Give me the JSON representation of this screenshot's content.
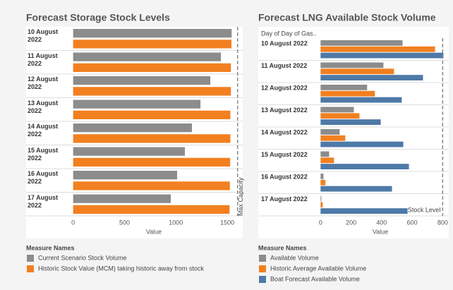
{
  "chart_data": [
    {
      "type": "bar",
      "orientation": "horizontal",
      "title": "Forecast Storage Stock Levels",
      "categories": [
        "10 August 2022",
        "11 August 2022",
        "12 August 2022",
        "13 August 2022",
        "14 August 2022",
        "15 August 2022",
        "16 August 2022",
        "17 August 2022"
      ],
      "series": [
        {
          "name": "Current Scenario Stock Volume",
          "color": "#8c8c8c",
          "values": [
            1542,
            1438,
            1335,
            1239,
            1156,
            1087,
            1012,
            950
          ]
        },
        {
          "name": "Historic Stock Value (MCM) taking historic away from stock",
          "color": "#f28020",
          "values": [
            1540,
            1535,
            1535,
            1530,
            1530,
            1528,
            1525,
            1522
          ]
        }
      ],
      "xlim": [
        -25,
        1650
      ],
      "xticks": [
        0,
        500,
        1000,
        1500
      ],
      "xlabel": "Value",
      "legend_title": "Measure Names",
      "annotations": [
        {
          "text": "Max Capacity",
          "x": 1600
        }
      ]
    },
    {
      "type": "bar",
      "orientation": "horizontal",
      "title": "Forecast LNG Available Stock Volume",
      "row_header": "Day of Day of Gas..",
      "categories": [
        "10 August 2022",
        "11 August 2022",
        "12 August 2022",
        "13 August 2022",
        "14 August 2022",
        "15 August 2022",
        "16 August 2022",
        "17 August 2022"
      ],
      "series": [
        {
          "name": "Available Volume",
          "color": "#8c8c8c",
          "values": [
            537,
            412,
            305,
            218,
            125,
            56,
            19,
            5
          ]
        },
        {
          "name": "Historic Average Available Volume",
          "color": "#f28020",
          "values": [
            750,
            481,
            356,
            255,
            162,
            88,
            32,
            14
          ]
        },
        {
          "name": "Boat Forecast Available Volume",
          "color": "#4e79a7",
          "values": [
            805,
            671,
            532,
            394,
            542,
            579,
            468,
            570
          ]
        }
      ],
      "xlim": [
        -20,
        840
      ],
      "xticks": [
        0,
        200,
        400,
        600,
        800
      ],
      "xlabel": "Value",
      "legend_title": "Measure Names",
      "annotations": [
        {
          "text": "Stock Level",
          "x": 800
        }
      ]
    }
  ]
}
